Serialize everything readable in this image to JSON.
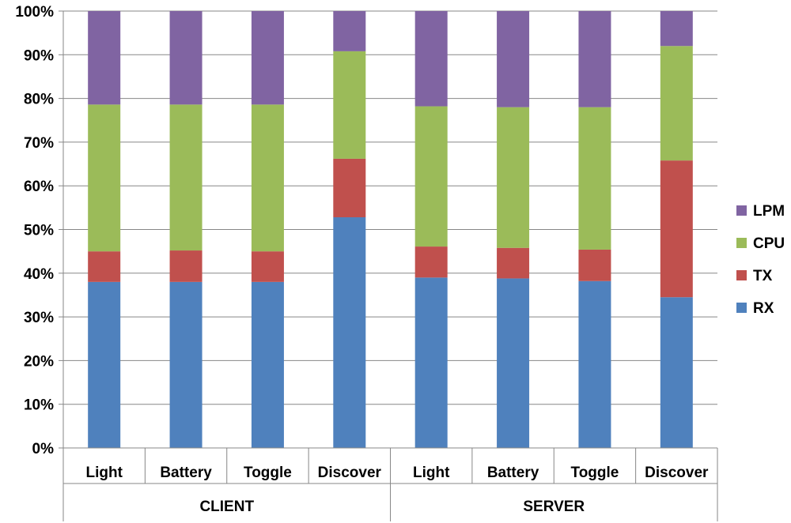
{
  "chart_data": {
    "type": "bar",
    "stacked": true,
    "percent_stacked": true,
    "groups": [
      {
        "label": "CLIENT",
        "categories": [
          "Light",
          "Battery",
          "Toggle",
          "Discover"
        ]
      },
      {
        "label": "SERVER",
        "categories": [
          "Light",
          "Battery",
          "Toggle",
          "Discover"
        ]
      }
    ],
    "categories": [
      "Light",
      "Battery",
      "Toggle",
      "Discover",
      "Light",
      "Battery",
      "Toggle",
      "Discover"
    ],
    "series": [
      {
        "name": "RX",
        "color": "#4F81BD",
        "values": [
          38.0,
          38.0,
          38.0,
          52.8,
          39.0,
          38.8,
          38.2,
          34.5
        ]
      },
      {
        "name": "TX",
        "color": "#C0504D",
        "values": [
          7.0,
          7.2,
          7.0,
          13.4,
          7.1,
          7.0,
          7.2,
          31.3
        ]
      },
      {
        "name": "CPU",
        "color": "#9BBB59",
        "values": [
          33.6,
          33.4,
          33.6,
          24.6,
          32.1,
          32.2,
          32.6,
          26.2
        ]
      },
      {
        "name": "LPM",
        "color": "#8064A2",
        "values": [
          21.4,
          21.4,
          21.4,
          9.2,
          21.8,
          22.0,
          22.0,
          8.0
        ]
      }
    ],
    "ylim": [
      0,
      100
    ],
    "yticks": [
      "0%",
      "10%",
      "20%",
      "30%",
      "40%",
      "50%",
      "60%",
      "70%",
      "80%",
      "90%",
      "100%"
    ],
    "grid": true,
    "legend_position": "right",
    "legend_order": [
      "LPM",
      "CPU",
      "TX",
      "RX"
    ]
  }
}
